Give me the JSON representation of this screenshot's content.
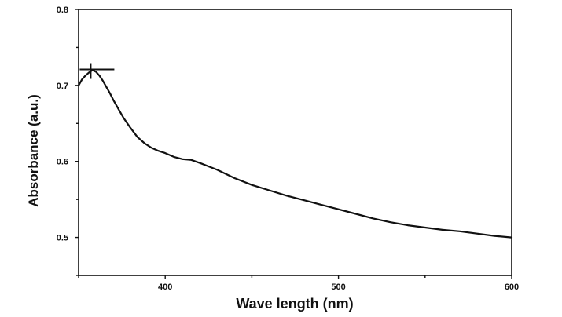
{
  "chart_data": {
    "type": "line",
    "title": "",
    "xlabel": "Wave length (nm)",
    "ylabel": "Absorbance (a.u.)",
    "xlim": [
      350,
      600
    ],
    "ylim": [
      0.45,
      0.8
    ],
    "x_ticks": [
      400,
      500,
      600
    ],
    "y_ticks": [
      0.5,
      0.6,
      0.7,
      0.8
    ],
    "x_tick_labels": [
      "400",
      "500",
      "600"
    ],
    "y_tick_labels": [
      "0.5",
      "0.6",
      "0.7",
      "0.8"
    ],
    "grid": false,
    "line_color": "#111111",
    "series": [
      {
        "x": [
          350,
          352,
          354,
          356,
          358,
          360,
          362,
          364,
          366,
          368,
          370,
          373,
          376,
          380,
          384,
          388,
          392,
          396,
          400,
          405,
          410,
          415,
          420,
          430,
          440,
          450,
          460,
          470,
          480,
          490,
          500,
          510,
          520,
          530,
          540,
          550,
          560,
          570,
          580,
          590,
          600
        ],
        "y": [
          0.7,
          0.708,
          0.713,
          0.717,
          0.72,
          0.718,
          0.713,
          0.706,
          0.698,
          0.69,
          0.681,
          0.669,
          0.657,
          0.644,
          0.632,
          0.624,
          0.618,
          0.614,
          0.611,
          0.606,
          0.603,
          0.602,
          0.598,
          0.589,
          0.578,
          0.569,
          0.562,
          0.555,
          0.549,
          0.543,
          0.537,
          0.531,
          0.525,
          0.52,
          0.516,
          0.513,
          0.51,
          0.508,
          0.505,
          0.502,
          0.5
        ]
      }
    ],
    "peak_marker": {
      "x": 357,
      "y": 0.721
    }
  }
}
